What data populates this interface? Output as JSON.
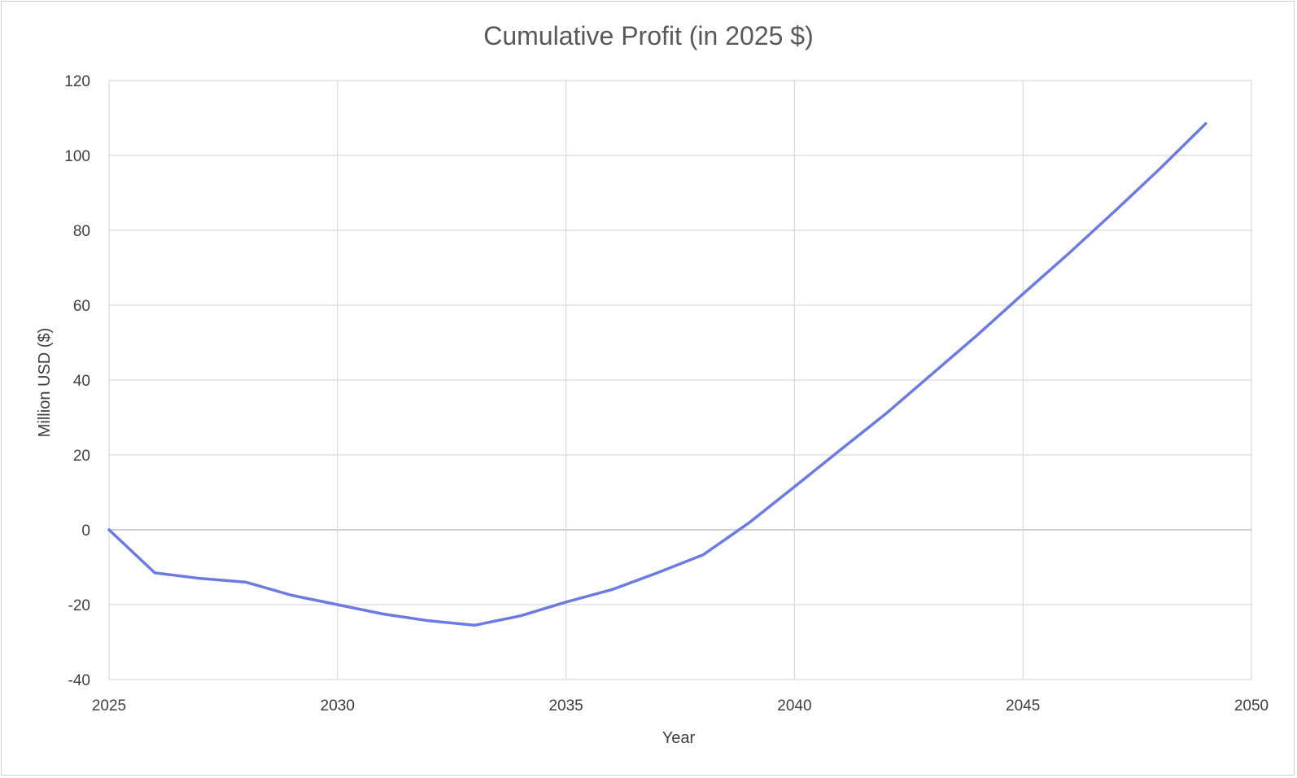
{
  "chart_data": {
    "type": "line",
    "title": "Cumulative Profit (in 2025 $)",
    "xlabel": "Year",
    "ylabel": "Million USD ($)",
    "xlim": [
      2025,
      2050
    ],
    "ylim": [
      -40,
      120
    ],
    "x_ticks": [
      2025,
      2030,
      2035,
      2040,
      2045,
      2050
    ],
    "y_ticks": [
      -40,
      -20,
      0,
      20,
      40,
      60,
      80,
      100,
      120
    ],
    "grid": true,
    "legend": "none",
    "line_color": "#6b7be0",
    "series": [
      {
        "x": [
          2025,
          2026,
          2027,
          2028,
          2029,
          2030,
          2031,
          2032,
          2033,
          2034,
          2035,
          2036,
          2037,
          2038,
          2039,
          2040,
          2041,
          2042,
          2043,
          2044,
          2045,
          2046,
          2047,
          2048,
          2049
        ],
        "y": [
          0,
          -11.5,
          -13,
          -14,
          -17.5,
          -20,
          -22.5,
          -24.3,
          -25.5,
          -23,
          -19.3,
          -16,
          -11.5,
          -6.7,
          1.8,
          11.5,
          21.3,
          31,
          41.5,
          52,
          63,
          73.8,
          85,
          96.5,
          108.5
        ]
      }
    ]
  }
}
